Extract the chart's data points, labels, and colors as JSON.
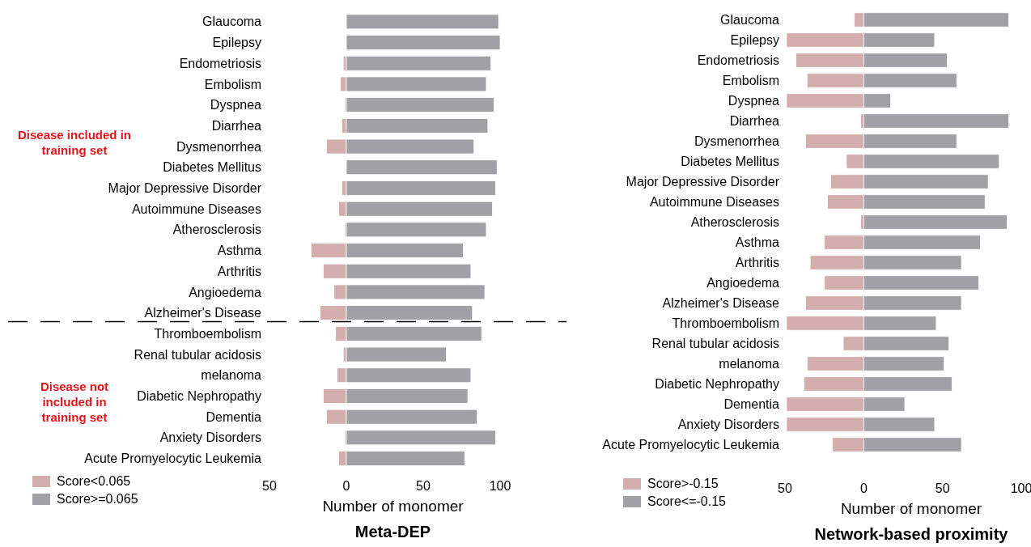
{
  "chart_data": [
    {
      "type": "bar",
      "orientation": "horizontal",
      "stacked": true,
      "title": "Meta-DEP",
      "xlabel": "Number of monomer",
      "categories": [
        "Glaucoma",
        "Epilepsy",
        "Endometriosis",
        "Embolism",
        "Dyspnea",
        "Diarrhea",
        "Dysmenorrhea",
        "Diabetes Mellitus",
        "Major Depressive Disorder",
        "Autoimmune Diseases",
        "Atherosclerosis",
        "Asthma",
        "Arthritis",
        "Angioedema",
        "Alzheimer's Disease",
        "Thromboembolism",
        "Renal tubular acidosis",
        "melanoma",
        "Diabetic Nephropathy",
        "Dementia",
        "Anxiety Disorders",
        "Acute Promyelocytic Leukemia"
      ],
      "series": [
        {
          "name": "Score<0.065",
          "color": "#d4aeae",
          "values": [
            0,
            0,
            -2,
            -4,
            -1,
            -3,
            -13,
            0,
            -3,
            -5,
            -1,
            -23,
            -15,
            -8,
            -17,
            -7,
            -2,
            -6,
            -15,
            -13,
            -1,
            -5
          ]
        },
        {
          "name": "Score>=0.065",
          "color": "#a1a0a5",
          "values": [
            99,
            100,
            94,
            91,
            96,
            92,
            83,
            98,
            97,
            95,
            91,
            76,
            81,
            90,
            82,
            88,
            65,
            81,
            79,
            85,
            97,
            77
          ]
        }
      ],
      "xlim": [
        -50,
        100
      ],
      "xticks": [
        {
          "value": -50,
          "label": "50"
        },
        0,
        50,
        100
      ],
      "grid": false,
      "legend": "bottom left",
      "annotations": [
        "Disease included in training set",
        "Disease not included in training set"
      ]
    },
    {
      "type": "bar",
      "orientation": "horizontal",
      "stacked": true,
      "title": "Network-based proximity",
      "xlabel": "Number of monomer",
      "categories": [
        "Glaucoma",
        "Epilepsy",
        "Endometriosis",
        "Embolism",
        "Dyspnea",
        "Diarrhea",
        "Dysmenorrhea",
        "Diabetes Mellitus",
        "Major Depressive Disorder",
        "Autoimmune Diseases",
        "Atherosclerosis",
        "Asthma",
        "Arthritis",
        "Angioedema",
        "Alzheimer's Disease",
        "Thromboembolism",
        "Renal tubular acidosis",
        "melanoma",
        "Diabetic Nephropathy",
        "Dementia",
        "Anxiety Disorders",
        "Acute Promyelocytic Leukemia"
      ],
      "series": [
        {
          "name": "Score>-0.15",
          "color": "#d4aeae",
          "values": [
            -6,
            -49,
            -43,
            -36,
            -49,
            -2,
            -37,
            -11,
            -21,
            -23,
            -2,
            -25,
            -34,
            -25,
            -37,
            -49,
            -13,
            -36,
            -38,
            -49,
            -49,
            -20
          ]
        },
        {
          "name": "Score<=-0.15",
          "color": "#a1a0a5",
          "values": [
            92,
            45,
            53,
            59,
            17,
            92,
            59,
            86,
            79,
            77,
            91,
            74,
            62,
            73,
            62,
            46,
            54,
            51,
            56,
            26,
            45,
            62
          ]
        }
      ],
      "xlim": [
        -50,
        100
      ],
      "xticks": [
        {
          "value": -50,
          "label": "50"
        },
        0,
        50,
        100
      ],
      "grid": false,
      "legend": "bottom left"
    }
  ]
}
